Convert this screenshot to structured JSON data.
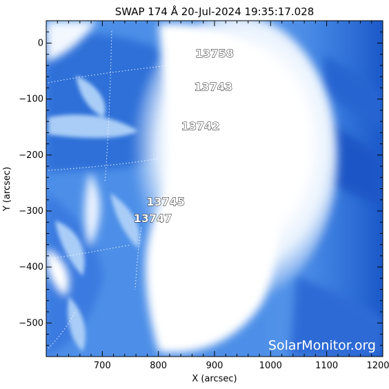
{
  "title": "SWAP 174 Å 20-Jul-2024 19:35:17.028",
  "x_axis": {
    "label": "X (arcsec)",
    "range": [
      600,
      1200
    ],
    "ticks": [
      {
        "value": 700,
        "label": "700"
      },
      {
        "value": 800,
        "label": "800"
      },
      {
        "value": 900,
        "label": "900"
      },
      {
        "value": 1000,
        "label": "1000"
      },
      {
        "value": 1100,
        "label": "1100"
      },
      {
        "value": 1200,
        "label": "1200"
      }
    ]
  },
  "y_axis": {
    "label": "Y (arcsec)",
    "range": [
      -560,
      40
    ],
    "ticks": [
      {
        "value": 0,
        "label": "0"
      },
      {
        "value": -100,
        "label": "−100"
      },
      {
        "value": -200,
        "label": "−200"
      },
      {
        "value": -300,
        "label": "−300"
      },
      {
        "value": -400,
        "label": "−400"
      },
      {
        "value": -500,
        "label": "−500"
      }
    ]
  },
  "regions": [
    {
      "id": "13758",
      "label": "13758",
      "x": 900,
      "y": -25
    },
    {
      "id": "13743",
      "label": "13743",
      "x": 898,
      "y": -85
    },
    {
      "id": "13742",
      "label": "13742",
      "x": 875,
      "y": -155
    },
    {
      "id": "13745",
      "label": "13745",
      "x": 813,
      "y": -290
    },
    {
      "id": "13747",
      "label": "13747",
      "x": 790,
      "y": -320
    }
  ],
  "watermark": "SolarMonitor.org",
  "colors": {
    "background": "#ffffff",
    "image_dark": "#1a55c8",
    "image_mid": "#4d8fe8",
    "image_light": "#a9cdf7",
    "bright": "#ffffff",
    "axis": "#000000"
  }
}
